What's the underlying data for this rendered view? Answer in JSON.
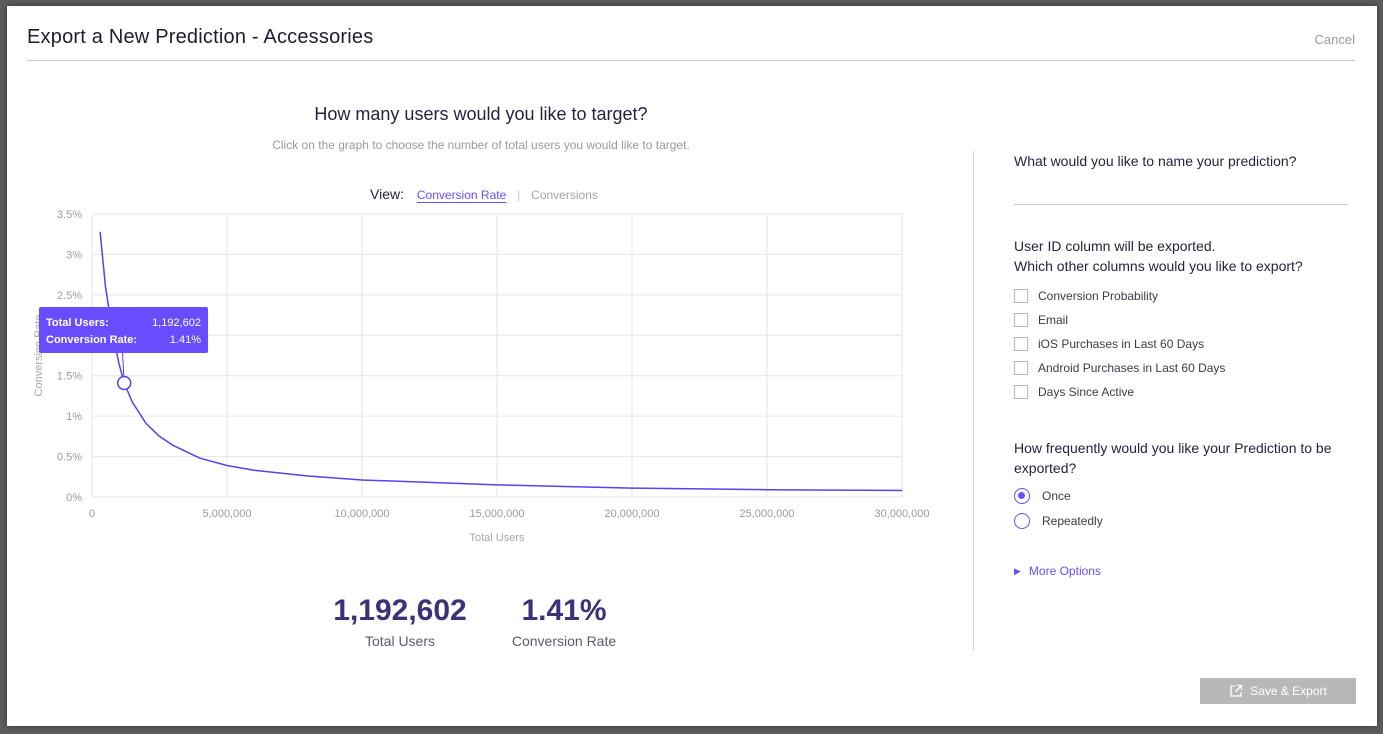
{
  "header": {
    "title": "Export a New Prediction - Accessories",
    "cancel_label": "Cancel"
  },
  "left": {
    "question": "How many users would you like to target?",
    "instruction": "Click on the graph to choose the number of total users you would like to target.",
    "view": {
      "label": "View:",
      "tabs": [
        {
          "label": "Conversion Rate",
          "active": true
        },
        {
          "label": "Conversions",
          "active": false
        }
      ],
      "separator": "|"
    }
  },
  "tooltip": {
    "total_users_label": "Total Users:",
    "total_users_value": "1,192,602",
    "conversion_rate_label": "Conversion Rate:",
    "conversion_rate_value": "1.41%"
  },
  "stats": {
    "total_users_value": "1,192,602",
    "total_users_caption": "Total Users",
    "conversion_rate_value": "1.41%",
    "conversion_rate_caption": "Conversion Rate"
  },
  "chart_data": {
    "type": "line",
    "xlabel": "Total Users",
    "ylabel": "Conversion Rate",
    "xlim": [
      0,
      30000000
    ],
    "ylim": [
      0,
      3.5
    ],
    "x_ticks": [
      0,
      5000000,
      10000000,
      15000000,
      20000000,
      25000000,
      30000000
    ],
    "x_tick_labels": [
      "0",
      "5,000,000",
      "10,000,000",
      "15,000,000",
      "20,000,000",
      "25,000,000",
      "30,000,000"
    ],
    "y_ticks": [
      0,
      0.5,
      1,
      1.5,
      2,
      2.5,
      3,
      3.5
    ],
    "y_tick_labels": [
      "0%",
      "0.5%",
      "1%",
      "1.5%",
      "2%",
      "2.5%",
      "3%",
      "3.5%"
    ],
    "grid": true,
    "line_color": "#5b3ff0",
    "series": [
      {
        "x": [
          300000,
          500000,
          750000,
          1000000,
          1192602,
          1500000,
          2000000,
          2500000,
          3000000,
          4000000,
          5000000,
          6000000,
          8000000,
          10000000,
          12500000,
          15000000,
          17500000,
          20000000,
          22500000,
          25000000,
          27500000,
          30000000
        ],
        "y": [
          3.28,
          2.6,
          2.05,
          1.65,
          1.41,
          1.17,
          0.91,
          0.75,
          0.64,
          0.48,
          0.39,
          0.33,
          0.26,
          0.21,
          0.18,
          0.15,
          0.13,
          0.11,
          0.1,
          0.09,
          0.085,
          0.08
        ]
      }
    ],
    "selected_point": {
      "x": 1192602,
      "y": 1.41
    }
  },
  "right": {
    "name_question": "What would you like to name your prediction?",
    "name_value": "",
    "columns_note": "User ID column will be exported.",
    "columns_question": "Which other columns would you like to export?",
    "columns": [
      {
        "label": "Conversion Probability",
        "checked": false
      },
      {
        "label": "Email",
        "checked": false
      },
      {
        "label": "iOS Purchases in Last 60 Days",
        "checked": false
      },
      {
        "label": "Android Purchases in Last 60 Days",
        "checked": false
      },
      {
        "label": "Days Since Active",
        "checked": false
      }
    ],
    "frequency_question": "How frequently would you like your Prediction to be exported?",
    "frequency_options": [
      {
        "label": "Once",
        "selected": true
      },
      {
        "label": "Repeatedly",
        "selected": false
      }
    ],
    "more_options_label": "More Options"
  },
  "footer": {
    "save_label": "Save & Export"
  },
  "colors": {
    "accent": "#6a4cff",
    "stat_text": "#3f3079",
    "button_disabled": "#b8b8b8"
  }
}
